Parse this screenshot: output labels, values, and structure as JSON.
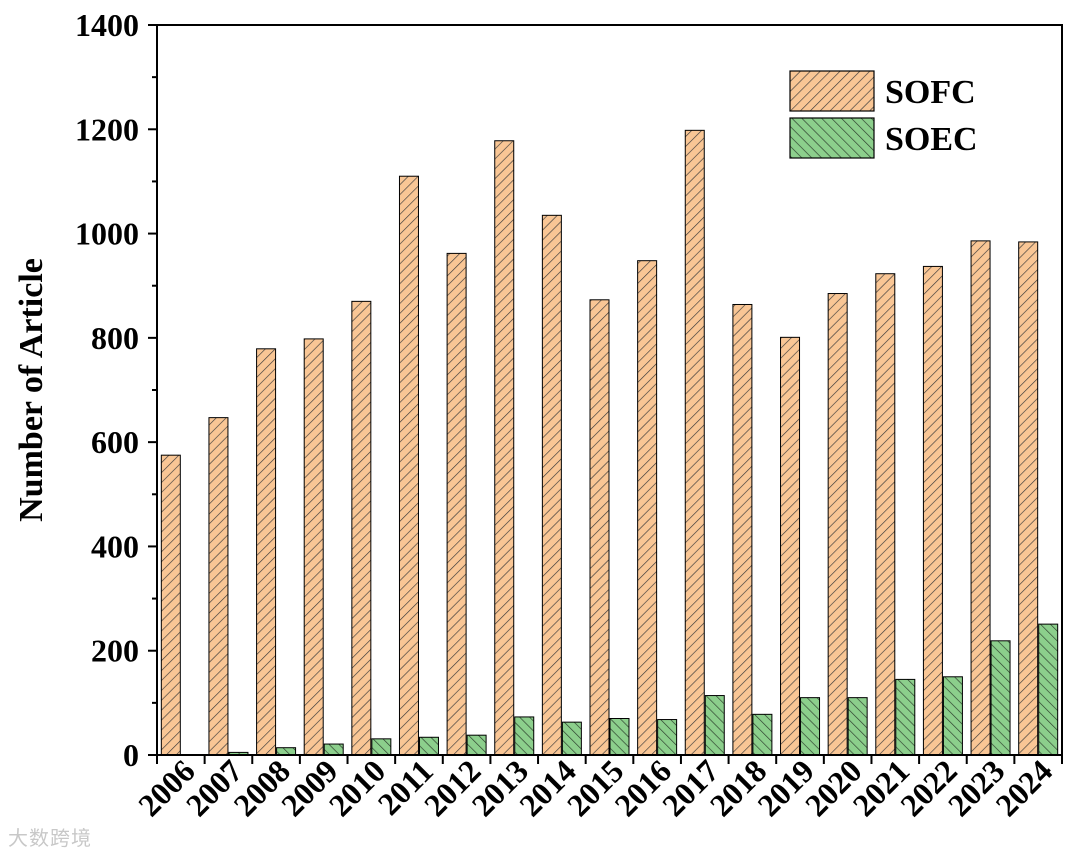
{
  "watermark": "大数跨境",
  "colors": {
    "sofc_fill": "#f9c695",
    "soec_fill": "#8ccf8c",
    "hatch": "#3a3a3a",
    "axis": "#000000"
  },
  "chart_data": {
    "type": "bar",
    "title": "",
    "xlabel": "",
    "ylabel": "Number of Article",
    "ylim": [
      0,
      1400
    ],
    "yticks": [
      0,
      200,
      400,
      600,
      800,
      1000,
      1200,
      1400
    ],
    "grid": false,
    "legend_position": "top-right",
    "categories": [
      "2006",
      "2007",
      "2008",
      "2009",
      "2010",
      "2011",
      "2012",
      "2013",
      "2014",
      "2015",
      "2016",
      "2017",
      "2018",
      "2019",
      "2020",
      "2021",
      "2022",
      "2023",
      "2024"
    ],
    "series": [
      {
        "name": "SOFC",
        "values": [
          575,
          647,
          779,
          798,
          870,
          1110,
          962,
          1178,
          1035,
          873,
          948,
          1198,
          864,
          801,
          885,
          923,
          937,
          986,
          984
        ]
      },
      {
        "name": "SOEC",
        "values": [
          0,
          5,
          14,
          21,
          31,
          34,
          38,
          73,
          63,
          70,
          68,
          114,
          78,
          110,
          110,
          145,
          150,
          219,
          251
        ]
      }
    ]
  }
}
